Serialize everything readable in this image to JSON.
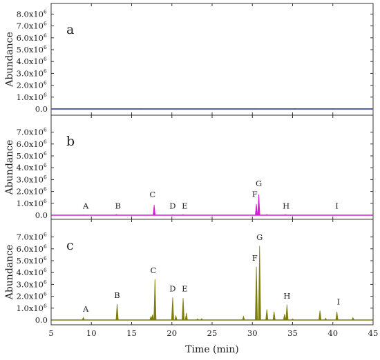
{
  "chart_data": {
    "type": "line",
    "xlabel": "Time (min)",
    "xlim": [
      5,
      45
    ],
    "x_ticks": [
      "5",
      "10",
      "15",
      "20",
      "25",
      "30",
      "35",
      "40",
      "45"
    ],
    "ylabel": "Abundance",
    "grid": false,
    "panels": [
      {
        "label": "a",
        "color": "#1f2d8c",
        "ylim": [
          -0.4,
          8.0
        ],
        "y_ticks": [
          "0.0",
          "1.0x10",
          "2.0x10",
          "3.0x10",
          "4.0x10",
          "5.0x10",
          "6.0x10",
          "7.0x10",
          "8.0x10"
        ],
        "y_tick_exponent": "6",
        "peaks": [
          {
            "t": 16.1,
            "h": 0.02
          },
          {
            "t": 30.4,
            "h": 0.015
          },
          {
            "t": 35.3,
            "h": 0.03
          },
          {
            "t": 40.0,
            "h": 0.02
          }
        ],
        "labels": []
      },
      {
        "label": "b",
        "color": "#d61fd6",
        "ylim": [
          -0.4,
          8.0
        ],
        "y_ticks": [
          "0.0",
          "1.0x10",
          "2.0x10",
          "3.0x10",
          "4.0x10",
          "5.0x10",
          "6.0x10",
          "7.0x10"
        ],
        "y_tick_exponent": "6",
        "peaks": [
          {
            "t": 9.0,
            "h": 0.02
          },
          {
            "t": 13.1,
            "h": 0.06
          },
          {
            "t": 17.8,
            "h": 0.88
          },
          {
            "t": 20.1,
            "h": 0.04
          },
          {
            "t": 21.4,
            "h": 0.05
          },
          {
            "t": 30.5,
            "h": 0.95
          },
          {
            "t": 30.8,
            "h": 1.75
          },
          {
            "t": 31.8,
            "h": 0.05
          },
          {
            "t": 34.1,
            "h": 0.05
          },
          {
            "t": 40.4,
            "h": 0.02
          }
        ],
        "labels": [
          {
            "text": "A",
            "t": 9.3,
            "h": 0.55
          },
          {
            "text": "B",
            "t": 13.3,
            "h": 0.55
          },
          {
            "text": "C",
            "t": 17.6,
            "h": 1.5
          },
          {
            "text": "D",
            "t": 20.1,
            "h": 0.55
          },
          {
            "text": "E",
            "t": 21.6,
            "h": 0.55
          },
          {
            "text": "F",
            "t": 30.3,
            "h": 1.55
          },
          {
            "text": "G",
            "t": 30.8,
            "h": 2.45
          },
          {
            "text": "H",
            "t": 34.2,
            "h": 0.55
          },
          {
            "text": "I",
            "t": 40.5,
            "h": 0.55
          }
        ]
      },
      {
        "label": "c",
        "color": "#7d7d0e",
        "ylim": [
          -0.4,
          8.0
        ],
        "y_ticks": [
          "0.0",
          "1.0x10",
          "2.0x10",
          "3.0x10",
          "4.0x10",
          "5.0x10",
          "6.0x10",
          "7.0x10"
        ],
        "y_tick_exponent": "6",
        "peaks": [
          {
            "t": 9.0,
            "h": 0.22
          },
          {
            "t": 13.2,
            "h": 1.35
          },
          {
            "t": 17.4,
            "h": 0.3
          },
          {
            "t": 17.6,
            "h": 0.45
          },
          {
            "t": 17.9,
            "h": 3.45
          },
          {
            "t": 20.1,
            "h": 1.9
          },
          {
            "t": 20.5,
            "h": 0.35
          },
          {
            "t": 21.4,
            "h": 1.85
          },
          {
            "t": 21.8,
            "h": 0.6
          },
          {
            "t": 23.2,
            "h": 0.1
          },
          {
            "t": 23.7,
            "h": 0.12
          },
          {
            "t": 28.9,
            "h": 0.3
          },
          {
            "t": 30.5,
            "h": 4.5
          },
          {
            "t": 30.9,
            "h": 6.25
          },
          {
            "t": 31.8,
            "h": 0.9
          },
          {
            "t": 32.7,
            "h": 0.7
          },
          {
            "t": 34.0,
            "h": 0.5
          },
          {
            "t": 34.3,
            "h": 1.3
          },
          {
            "t": 35.0,
            "h": 0.1
          },
          {
            "t": 38.4,
            "h": 0.8
          },
          {
            "t": 39.1,
            "h": 0.15
          },
          {
            "t": 40.5,
            "h": 0.7
          },
          {
            "t": 42.5,
            "h": 0.2
          }
        ],
        "labels": [
          {
            "text": "A",
            "t": 9.3,
            "h": 0.7
          },
          {
            "text": "B",
            "t": 13.2,
            "h": 1.85
          },
          {
            "text": "C",
            "t": 17.7,
            "h": 3.95
          },
          {
            "text": "D",
            "t": 20.1,
            "h": 2.4
          },
          {
            "text": "E",
            "t": 21.6,
            "h": 2.4
          },
          {
            "text": "F",
            "t": 30.3,
            "h": 5.0
          },
          {
            "text": "G",
            "t": 30.9,
            "h": 6.75
          },
          {
            "text": "H",
            "t": 34.3,
            "h": 1.8
          },
          {
            "text": "I",
            "t": 40.7,
            "h": 1.3
          }
        ]
      }
    ]
  }
}
